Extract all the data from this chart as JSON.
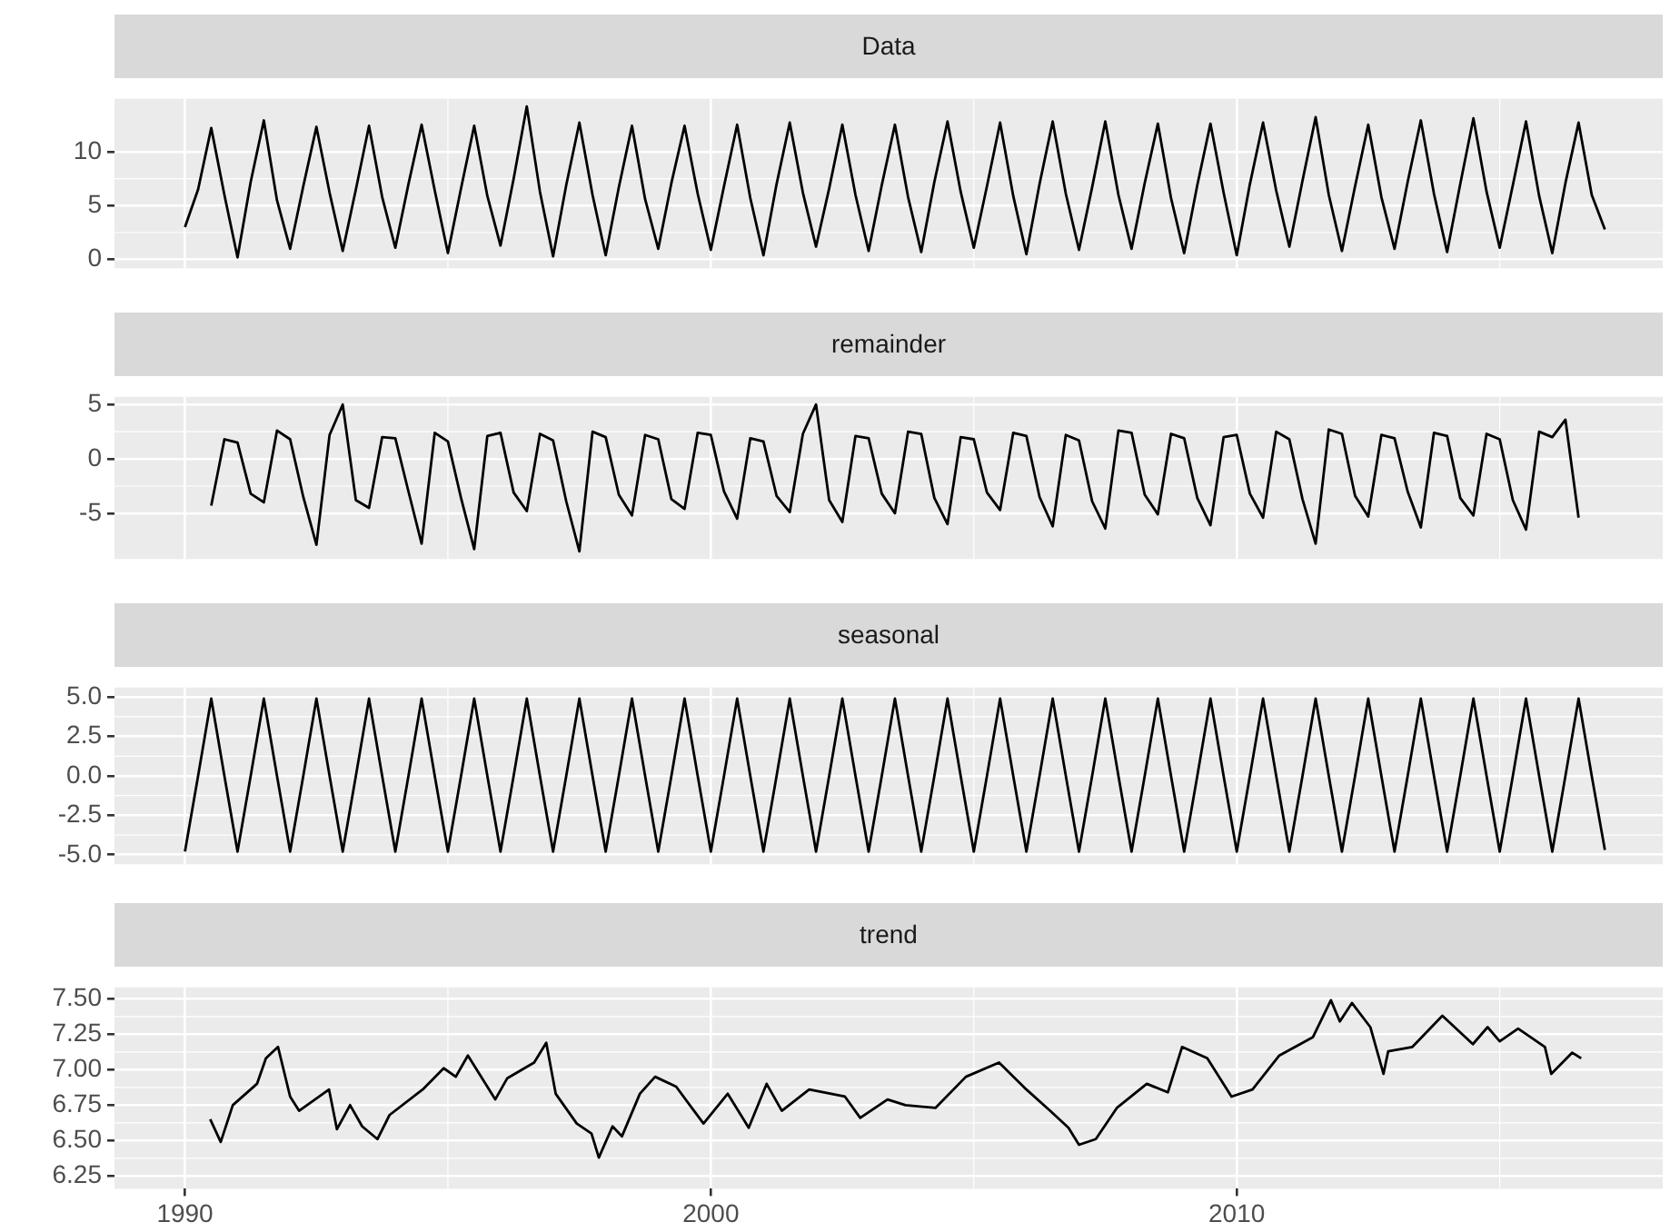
{
  "chart_data": [
    {
      "type": "line",
      "title": "Data",
      "color": "#000000",
      "grid": true,
      "tick_labels": "y",
      "xlim": [
        1988.66,
        2018.1
      ],
      "xticks": [
        1990,
        2000,
        2010
      ],
      "ylim": [
        -0.8,
        14.9
      ],
      "yticks": [
        0,
        5,
        10
      ],
      "x": [
        1990,
        1990.25,
        1990.5,
        1990.75,
        1991,
        1991.25,
        1991.5,
        1991.75,
        1992,
        1992.25,
        1992.5,
        1992.75,
        1993,
        1993.25,
        1993.5,
        1993.75,
        1994,
        1994.25,
        1994.5,
        1994.75,
        1995,
        1995.25,
        1995.5,
        1995.75,
        1996,
        1996.25,
        1996.5,
        1996.75,
        1997,
        1997.25,
        1997.5,
        1997.75,
        1998,
        1998.25,
        1998.5,
        1998.75,
        1999,
        1999.25,
        1999.5,
        1999.75,
        2000,
        2000.25,
        2000.5,
        2000.75,
        2001,
        2001.25,
        2001.5,
        2001.75,
        2002,
        2002.25,
        2002.5,
        2002.75,
        2003,
        2003.25,
        2003.5,
        2003.75,
        2004,
        2004.25,
        2004.5,
        2004.75,
        2005,
        2005.25,
        2005.5,
        2005.75,
        2006,
        2006.25,
        2006.5,
        2006.75,
        2007,
        2007.25,
        2007.5,
        2007.75,
        2008,
        2008.25,
        2008.5,
        2008.75,
        2009,
        2009.25,
        2009.5,
        2009.75,
        2010,
        2010.25,
        2010.5,
        2010.75,
        2011,
        2011.25,
        2011.5,
        2011.75,
        2012,
        2012.25,
        2012.5,
        2012.75,
        2013,
        2013.25,
        2013.5,
        2013.75,
        2014,
        2014.25,
        2014.5,
        2014.75,
        2015,
        2015.25,
        2015.5,
        2015.75,
        2016,
        2016.25,
        2016.5,
        2016.75,
        2017
      ],
      "values": [
        3.0,
        6.5,
        12.2,
        6.0,
        0.2,
        7.2,
        12.9,
        5.5,
        1.0,
        6.8,
        12.3,
        6.2,
        0.8,
        6.5,
        12.4,
        5.8,
        1.1,
        7.0,
        12.5,
        6.4,
        0.6,
        6.6,
        12.4,
        5.9,
        1.3,
        7.5,
        14.2,
        6.3,
        0.3,
        6.9,
        12.7,
        6.0,
        0.4,
        6.7,
        12.4,
        5.6,
        1.0,
        7.1,
        12.4,
        6.1,
        0.9,
        6.8,
        12.5,
        5.7,
        0.4,
        7.0,
        12.7,
        6.2,
        1.2,
        6.6,
        12.5,
        6.0,
        0.8,
        6.9,
        12.5,
        5.8,
        0.7,
        7.2,
        12.8,
        6.3,
        1.1,
        6.8,
        12.7,
        5.9,
        0.5,
        7.0,
        12.8,
        6.1,
        0.9,
        6.7,
        12.8,
        6.0,
        1.0,
        7.1,
        12.6,
        5.7,
        0.6,
        6.9,
        12.6,
        6.2,
        0.4,
        7.0,
        12.7,
        6.4,
        1.2,
        7.3,
        13.2,
        6.0,
        0.8,
        6.8,
        12.5,
        5.8,
        1.0,
        7.2,
        12.9,
        6.1,
        0.7,
        7.0,
        13.1,
        6.3,
        1.1,
        6.9,
        12.8,
        5.9,
        0.6,
        7.1,
        12.7,
        6.0,
        2.8
      ]
    },
    {
      "type": "line",
      "title": "remainder",
      "color": "#000000",
      "grid": true,
      "tick_labels": "y",
      "xlim": [
        1988.66,
        2018.1
      ],
      "xticks": [
        1990,
        2000,
        2010
      ],
      "ylim": [
        -9.2,
        5.7
      ],
      "yticks": [
        -5,
        0,
        5
      ],
      "x": [
        1990.5,
        1990.75,
        1991,
        1991.25,
        1991.5,
        1991.75,
        1992,
        1992.25,
        1992.5,
        1992.75,
        1993,
        1993.25,
        1993.5,
        1993.75,
        1994,
        1994.25,
        1994.5,
        1994.75,
        1995,
        1995.25,
        1995.5,
        1995.75,
        1996,
        1996.25,
        1996.5,
        1996.75,
        1997,
        1997.25,
        1997.5,
        1997.75,
        1998,
        1998.25,
        1998.5,
        1998.75,
        1999,
        1999.25,
        1999.5,
        1999.75,
        2000,
        2000.25,
        2000.5,
        2000.75,
        2001,
        2001.25,
        2001.5,
        2001.75,
        2002,
        2002.25,
        2002.5,
        2002.75,
        2003,
        2003.25,
        2003.5,
        2003.75,
        2004,
        2004.25,
        2004.5,
        2004.75,
        2005,
        2005.25,
        2005.5,
        2005.75,
        2006,
        2006.25,
        2006.5,
        2006.75,
        2007,
        2007.25,
        2007.5,
        2007.75,
        2008,
        2008.25,
        2008.5,
        2008.75,
        2009,
        2009.25,
        2009.5,
        2009.75,
        2010,
        2010.25,
        2010.5,
        2010.75,
        2011,
        2011.25,
        2011.5,
        2011.75,
        2012,
        2012.25,
        2012.5,
        2012.75,
        2013,
        2013.25,
        2013.5,
        2013.75,
        2014,
        2014.25,
        2014.5,
        2014.75,
        2015,
        2015.25,
        2015.5,
        2015.75,
        2016,
        2016.25,
        2016.5
      ],
      "values": [
        -4.3,
        1.8,
        1.5,
        -3.2,
        -4.0,
        2.6,
        1.8,
        -3.5,
        -7.9,
        2.2,
        5.0,
        -3.8,
        -4.5,
        2.0,
        1.9,
        -3.0,
        -7.8,
        2.4,
        1.6,
        -3.6,
        -8.3,
        2.1,
        2.4,
        -3.1,
        -4.8,
        2.3,
        1.7,
        -3.9,
        -8.5,
        2.5,
        2.0,
        -3.3,
        -5.2,
        2.2,
        1.8,
        -3.7,
        -4.6,
        2.4,
        2.2,
        -3.0,
        -5.5,
        1.9,
        1.6,
        -3.4,
        -4.9,
        2.3,
        5.0,
        -3.8,
        -5.8,
        2.1,
        1.9,
        -3.2,
        -5.0,
        2.5,
        2.3,
        -3.6,
        -6.0,
        2.0,
        1.8,
        -3.1,
        -4.7,
        2.4,
        2.1,
        -3.5,
        -6.2,
        2.2,
        1.7,
        -3.9,
        -6.4,
        2.6,
        2.4,
        -3.3,
        -5.1,
        2.3,
        1.9,
        -3.6,
        -6.1,
        2.0,
        2.2,
        -3.2,
        -5.4,
        2.5,
        1.8,
        -3.7,
        -7.8,
        2.7,
        2.3,
        -3.4,
        -5.3,
        2.2,
        1.9,
        -3.0,
        -6.3,
        2.4,
        2.1,
        -3.6,
        -5.2,
        2.3,
        1.8,
        -3.8,
        -6.5,
        2.5,
        2.0,
        3.6,
        -5.4
      ]
    },
    {
      "type": "line",
      "title": "seasonal",
      "color": "#000000",
      "grid": true,
      "tick_labels": "y",
      "xlim": [
        1988.66,
        2018.1
      ],
      "xticks": [
        1990,
        2000,
        2010
      ],
      "ylim": [
        -5.6,
        5.6
      ],
      "yticks": [
        {
          "value": -5,
          "label": "-5.0"
        },
        {
          "value": -2.5,
          "label": "-2.5"
        },
        {
          "value": 0,
          "label": "0.0"
        },
        {
          "value": 2.5,
          "label": "2.5"
        },
        {
          "value": 5,
          "label": "5.0"
        }
      ],
      "x": [
        1990,
        1990.25,
        1990.5,
        1990.75,
        1991,
        1991.25,
        1991.5,
        1991.75,
        1992,
        1992.25,
        1992.5,
        1992.75,
        1993,
        1993.25,
        1993.5,
        1993.75,
        1994,
        1994.25,
        1994.5,
        1994.75,
        1995,
        1995.25,
        1995.5,
        1995.75,
        1996,
        1996.25,
        1996.5,
        1996.75,
        1997,
        1997.25,
        1997.5,
        1997.75,
        1998,
        1998.25,
        1998.5,
        1998.75,
        1999,
        1999.25,
        1999.5,
        1999.75,
        2000,
        2000.25,
        2000.5,
        2000.75,
        2001,
        2001.25,
        2001.5,
        2001.75,
        2002,
        2002.25,
        2002.5,
        2002.75,
        2003,
        2003.25,
        2003.5,
        2003.75,
        2004,
        2004.25,
        2004.5,
        2004.75,
        2005,
        2005.25,
        2005.5,
        2005.75,
        2006,
        2006.25,
        2006.5,
        2006.75,
        2007,
        2007.25,
        2007.5,
        2007.75,
        2008,
        2008.25,
        2008.5,
        2008.75,
        2009,
        2009.25,
        2009.5,
        2009.75,
        2010,
        2010.25,
        2010.5,
        2010.75,
        2011,
        2011.25,
        2011.5,
        2011.75,
        2012,
        2012.25,
        2012.5,
        2012.75,
        2013,
        2013.25,
        2013.5,
        2013.75,
        2014,
        2014.25,
        2014.5,
        2014.75,
        2015,
        2015.25,
        2015.5,
        2015.75,
        2016,
        2016.25,
        2016.5,
        2016.75,
        2017
      ],
      "values": [
        -4.8,
        0.0,
        4.9,
        0.0,
        -4.8,
        0.0,
        4.9,
        0.0,
        -4.8,
        0.0,
        4.9,
        0.0,
        -4.8,
        0.0,
        4.9,
        0.0,
        -4.8,
        0.0,
        4.9,
        0.0,
        -4.8,
        0.0,
        4.9,
        0.0,
        -4.8,
        0.0,
        4.9,
        0.0,
        -4.8,
        0.0,
        4.9,
        0.0,
        -4.8,
        0.0,
        4.9,
        0.0,
        -4.8,
        0.0,
        4.9,
        0.0,
        -4.8,
        0.0,
        4.9,
        0.0,
        -4.8,
        0.0,
        4.9,
        0.0,
        -4.8,
        0.0,
        4.9,
        0.0,
        -4.8,
        0.0,
        4.9,
        0.0,
        -4.8,
        0.0,
        4.9,
        0.0,
        -4.8,
        0.0,
        4.9,
        0.0,
        -4.8,
        0.0,
        4.9,
        0.0,
        -4.8,
        0.0,
        4.9,
        0.0,
        -4.8,
        0.0,
        4.9,
        0.0,
        -4.8,
        0.0,
        4.9,
        0.0,
        -4.8,
        0.0,
        4.9,
        0.0,
        -4.8,
        0.0,
        4.9,
        0.0,
        -4.8,
        0.0,
        4.9,
        0.0,
        -4.8,
        0.0,
        4.9,
        0.0,
        -4.8,
        0.0,
        4.9,
        0.0,
        -4.8,
        0.0,
        4.9,
        0.0,
        -4.8,
        0.0,
        4.9,
        0.0,
        -4.7
      ]
    },
    {
      "type": "line",
      "title": "trend",
      "color": "#000000",
      "grid": true,
      "xlim": [
        1988.66,
        2018.1
      ],
      "xticks": [
        1990,
        2000,
        2010
      ],
      "ylim": [
        6.16,
        7.58
      ],
      "yticks": [
        {
          "value": 6.25,
          "label": "6.25"
        },
        {
          "value": 6.5,
          "label": "6.50"
        },
        {
          "value": 6.75,
          "label": "6.75"
        },
        {
          "value": 7,
          "label": "7.00"
        },
        {
          "value": 7.25,
          "label": "7.25"
        },
        {
          "value": 7.5,
          "label": "7.50"
        }
      ],
      "x": [
        1990.48,
        1990.68,
        1990.91,
        1991.37,
        1991.54,
        1991.77,
        1992.0,
        1992.17,
        1992.74,
        1992.89,
        1993.14,
        1993.37,
        1993.66,
        1993.89,
        1994.52,
        1994.92,
        1995.15,
        1995.38,
        1995.9,
        1996.13,
        1996.64,
        1996.87,
        1997.05,
        1997.45,
        1997.73,
        1997.87,
        1998.13,
        1998.31,
        1998.65,
        1998.94,
        1999.34,
        1999.86,
        2000.32,
        2000.72,
        2001.06,
        2001.35,
        2001.87,
        2002.55,
        2002.84,
        2003.36,
        2003.7,
        2004.27,
        2004.85,
        2005.48,
        2006.0,
        2006.45,
        2006.8,
        2007.0,
        2007.32,
        2007.72,
        2008.29,
        2008.69,
        2008.96,
        2009.44,
        2009.9,
        2010.3,
        2010.81,
        2011.45,
        2011.79,
        2011.96,
        2012.19,
        2012.54,
        2012.79,
        2012.88,
        2013.34,
        2013.91,
        2014.49,
        2014.77,
        2015.0,
        2015.35,
        2015.86,
        2015.98,
        2016.38,
        2016.55
      ],
      "values": [
        6.65,
        6.49,
        6.75,
        6.9,
        7.08,
        7.16,
        6.81,
        6.71,
        6.86,
        6.58,
        6.75,
        6.6,
        6.51,
        6.68,
        6.86,
        7.01,
        6.95,
        7.1,
        6.79,
        6.94,
        7.05,
        7.19,
        6.83,
        6.62,
        6.55,
        6.38,
        6.6,
        6.53,
        6.83,
        6.95,
        6.88,
        6.62,
        6.83,
        6.59,
        6.9,
        6.71,
        6.86,
        6.81,
        6.66,
        6.79,
        6.75,
        6.73,
        6.95,
        7.05,
        6.86,
        6.71,
        6.59,
        6.47,
        6.51,
        6.73,
        6.9,
        6.84,
        7.16,
        7.08,
        6.81,
        6.86,
        7.1,
        7.23,
        7.49,
        7.34,
        7.47,
        7.3,
        6.97,
        7.13,
        7.16,
        7.38,
        7.18,
        7.3,
        7.2,
        7.29,
        7.16,
        6.97,
        7.12,
        7.08
      ]
    }
  ]
}
